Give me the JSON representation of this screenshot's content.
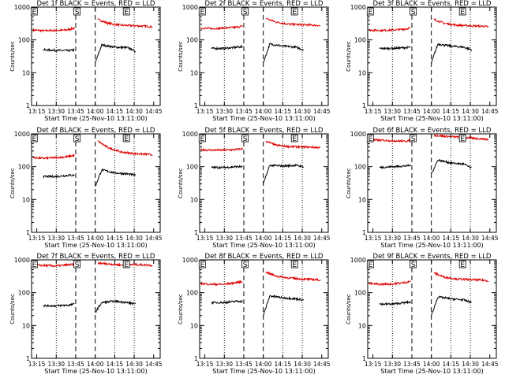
{
  "figure": {
    "background": "#ffffff"
  },
  "colors": {
    "events": "#000000",
    "lld": "#dd0000",
    "axes": "#000000",
    "markers": "#000000"
  },
  "chart_data": [
    {
      "panel": 1,
      "type": "line",
      "title": "Det 1f BLACK = Events, RED = LLD",
      "xlabel": "Start Time (25-Nov-10 13:11:00)",
      "ylabel": "Counts/sec",
      "ylog": true,
      "ylim": [
        1,
        1000
      ],
      "yticks": [
        "1",
        "10",
        "100",
        "1000"
      ],
      "xticks": [
        "13:15",
        "13:30",
        "13:45",
        "14:00",
        "14:15",
        "14:30",
        "14:45"
      ],
      "markers": [
        "E",
        "S",
        "E"
      ],
      "series": [
        {
          "color": "#dd0000",
          "segments": [
            {
              "x": [
                "13:12",
                "13:20",
                "13:30",
                "13:38",
                "13:44"
              ],
              "y": [
                200,
                190,
                195,
                200,
                230
              ]
            },
            {
              "x": [
                "14:02",
                "14:10",
                "14:20",
                "14:30",
                "14:40",
                "14:44"
              ],
              "y": [
                420,
                320,
                280,
                270,
                260,
                250
              ]
            }
          ]
        },
        {
          "color": "#000000",
          "segments": [
            {
              "x": [
                "13:20",
                "13:30",
                "13:40",
                "13:44"
              ],
              "y": [
                50,
                48,
                47,
                50
              ]
            },
            {
              "x": [
                "14:00",
                "14:05",
                "14:15",
                "14:25",
                "14:31"
              ],
              "y": [
                20,
                70,
                60,
                58,
                45
              ]
            }
          ]
        }
      ]
    },
    {
      "panel": 2,
      "type": "line",
      "title": "Det 2f BLACK = Events, RED = LLD",
      "xlabel": "Start Time (25-Nov-10 13:11:00)",
      "ylabel": "Counts/sec",
      "ylog": true,
      "ylim": [
        1,
        1000
      ],
      "yticks": [
        "1",
        "10",
        "100",
        "1000"
      ],
      "xticks": [
        "13:15",
        "13:30",
        "13:45",
        "14:00",
        "14:15",
        "14:30",
        "14:45"
      ],
      "markers": [
        "E",
        "S",
        "E"
      ],
      "series": [
        {
          "color": "#dd0000",
          "segments": [
            {
              "x": [
                "13:12",
                "13:20",
                "13:30",
                "13:38",
                "13:44"
              ],
              "y": [
                230,
                220,
                230,
                240,
                260
              ]
            },
            {
              "x": [
                "14:02",
                "14:10",
                "14:20",
                "14:30",
                "14:40",
                "14:44"
              ],
              "y": [
                450,
                350,
                300,
                290,
                280,
                270
              ]
            }
          ]
        },
        {
          "color": "#000000",
          "segments": [
            {
              "x": [
                "13:20",
                "13:30",
                "13:40",
                "13:44"
              ],
              "y": [
                55,
                55,
                60,
                62
              ]
            },
            {
              "x": [
                "14:00",
                "14:05",
                "14:15",
                "14:25",
                "14:31"
              ],
              "y": [
                20,
                75,
                65,
                60,
                50
              ]
            }
          ]
        }
      ]
    },
    {
      "panel": 3,
      "type": "line",
      "title": "Det 3f BLACK = Events, RED = LLD",
      "xlabel": "Start Time (25-Nov-10 13:11:00)",
      "ylabel": "Counts/sec",
      "ylog": true,
      "ylim": [
        1,
        1000
      ],
      "yticks": [
        "1",
        "10",
        "100",
        "1000"
      ],
      "xticks": [
        "13:15",
        "13:30",
        "13:45",
        "14:00",
        "14:15",
        "14:30",
        "14:45"
      ],
      "markers": [
        "E",
        "S",
        "E"
      ],
      "series": [
        {
          "color": "#dd0000",
          "segments": [
            {
              "x": [
                "13:12",
                "13:20",
                "13:30",
                "13:38",
                "13:44"
              ],
              "y": [
                200,
                195,
                200,
                210,
                230
              ]
            },
            {
              "x": [
                "14:02",
                "14:10",
                "14:20",
                "14:30",
                "14:40",
                "14:44"
              ],
              "y": [
                420,
                320,
                280,
                270,
                260,
                250
              ]
            }
          ]
        },
        {
          "color": "#000000",
          "segments": [
            {
              "x": [
                "13:20",
                "13:30",
                "13:40",
                "13:44"
              ],
              "y": [
                55,
                55,
                58,
                60
              ]
            },
            {
              "x": [
                "14:00",
                "14:05",
                "14:15",
                "14:25",
                "14:31"
              ],
              "y": [
                20,
                75,
                65,
                60,
                50
              ]
            }
          ]
        }
      ]
    },
    {
      "panel": 4,
      "type": "line",
      "title": "Det 4f BLACK = Events, RED = LLD",
      "xlabel": "Start Time (25-Nov-10 13:11:00)",
      "ylabel": "Counts/sec",
      "ylog": true,
      "ylim": [
        1,
        1000
      ],
      "yticks": [
        "1",
        "10",
        "100",
        "1000"
      ],
      "xticks": [
        "13:15",
        "13:30",
        "13:45",
        "14:00",
        "14:15",
        "14:30",
        "14:45"
      ],
      "markers": [
        "E",
        "S",
        "E"
      ],
      "series": [
        {
          "color": "#dd0000",
          "segments": [
            {
              "x": [
                "13:12",
                "13:20",
                "13:30",
                "13:38",
                "13:44"
              ],
              "y": [
                190,
                180,
                190,
                200,
                220
              ]
            },
            {
              "x": [
                "14:02",
                "14:10",
                "14:20",
                "14:30",
                "14:40",
                "14:44"
              ],
              "y": [
                600,
                380,
                280,
                250,
                240,
                230
              ]
            }
          ]
        },
        {
          "color": "#000000",
          "segments": [
            {
              "x": [
                "13:20",
                "13:30",
                "13:40",
                "13:44"
              ],
              "y": [
                50,
                50,
                55,
                55
              ]
            },
            {
              "x": [
                "14:00",
                "14:05",
                "14:15",
                "14:25",
                "14:31"
              ],
              "y": [
                25,
                80,
                65,
                60,
                55
              ]
            }
          ]
        }
      ]
    },
    {
      "panel": 5,
      "type": "line",
      "title": "Det 5f BLACK = Events, RED = LLD",
      "xlabel": "Start Time (25-Nov-10 13:11:00)",
      "ylabel": "Counts/sec",
      "ylog": true,
      "ylim": [
        1,
        1000
      ],
      "yticks": [
        "1",
        "10",
        "100",
        "1000"
      ],
      "xticks": [
        "13:15",
        "13:30",
        "13:45",
        "14:00",
        "14:15",
        "14:30",
        "14:45"
      ],
      "markers": [
        "E",
        "S",
        "E"
      ],
      "series": [
        {
          "color": "#dd0000",
          "segments": [
            {
              "x": [
                "13:12",
                "13:20",
                "13:30",
                "13:38",
                "13:44"
              ],
              "y": [
                330,
                320,
                320,
                330,
                350
              ]
            },
            {
              "x": [
                "14:02",
                "14:10",
                "14:20",
                "14:30",
                "14:40",
                "14:44"
              ],
              "y": [
                600,
                450,
                410,
                400,
                390,
                380
              ]
            }
          ]
        },
        {
          "color": "#000000",
          "segments": [
            {
              "x": [
                "13:20",
                "13:30",
                "13:40",
                "13:44"
              ],
              "y": [
                95,
                95,
                100,
                100
              ]
            },
            {
              "x": [
                "14:00",
                "14:05",
                "14:15",
                "14:25",
                "14:31"
              ],
              "y": [
                30,
                110,
                105,
                110,
                100
              ]
            }
          ]
        }
      ]
    },
    {
      "panel": 6,
      "type": "line",
      "title": "Det 6f BLACK = Events, RED = LLD",
      "xlabel": "Start Time (25-Nov-10 13:11:00)",
      "ylabel": "Counts/sec",
      "ylog": true,
      "ylim": [
        1,
        1000
      ],
      "yticks": [
        "1",
        "10",
        "100",
        "1000"
      ],
      "xticks": [
        "13:15",
        "13:30",
        "13:45",
        "14:00",
        "14:15",
        "14:30",
        "14:45"
      ],
      "markers": [
        "E",
        "S",
        "E"
      ],
      "series": [
        {
          "color": "#dd0000",
          "segments": [
            {
              "x": [
                "13:12",
                "13:20",
                "13:30",
                "13:38",
                "13:44"
              ],
              "y": [
                650,
                640,
                620,
                600,
                620
              ]
            },
            {
              "x": [
                "14:02",
                "14:10",
                "14:20",
                "14:30",
                "14:40",
                "14:44"
              ],
              "y": [
                900,
                850,
                800,
                750,
                700,
                680
              ]
            }
          ]
        },
        {
          "color": "#000000",
          "segments": [
            {
              "x": [
                "13:20",
                "13:30",
                "13:40",
                "13:44"
              ],
              "y": [
                95,
                100,
                105,
                110
              ]
            },
            {
              "x": [
                "14:00",
                "14:05",
                "14:15",
                "14:25",
                "14:31"
              ],
              "y": [
                60,
                160,
                130,
                120,
                90
              ]
            }
          ]
        }
      ]
    },
    {
      "panel": 7,
      "type": "line",
      "title": "Det 7f BLACK = Events, RED = LLD",
      "xlabel": "Start Time (25-Nov-10 13:11:00)",
      "ylabel": "Counts/sec",
      "ylog": true,
      "ylim": [
        1,
        1000
      ],
      "yticks": [
        "1",
        "10",
        "100",
        "1000"
      ],
      "xticks": [
        "13:15",
        "13:30",
        "13:45",
        "14:00",
        "14:15",
        "14:30",
        "14:45"
      ],
      "markers": [
        "E",
        "S",
        "E"
      ],
      "series": [
        {
          "color": "#dd0000",
          "segments": [
            {
              "x": [
                "13:12",
                "13:20",
                "13:30",
                "13:38",
                "13:44"
              ],
              "y": [
                700,
                680,
                650,
                700,
                720
              ]
            },
            {
              "x": [
                "14:02",
                "14:10",
                "14:20",
                "14:30",
                "14:40",
                "14:44"
              ],
              "y": [
                800,
                750,
                700,
                720,
                700,
                680
              ]
            }
          ]
        },
        {
          "color": "#000000",
          "segments": [
            {
              "x": [
                "13:20",
                "13:30",
                "13:40",
                "13:44"
              ],
              "y": [
                40,
                40,
                42,
                45
              ]
            },
            {
              "x": [
                "14:00",
                "14:05",
                "14:15",
                "14:25",
                "14:31"
              ],
              "y": [
                25,
                50,
                55,
                50,
                45
              ]
            }
          ]
        }
      ]
    },
    {
      "panel": 8,
      "type": "line",
      "title": "Det 8f BLACK = Events, RED = LLD",
      "xlabel": "Start Time (25-Nov-10 13:11:00)",
      "ylabel": "Counts/sec",
      "ylog": true,
      "ylim": [
        1,
        1000
      ],
      "yticks": [
        "1",
        "10",
        "100",
        "1000"
      ],
      "xticks": [
        "13:15",
        "13:30",
        "13:45",
        "14:00",
        "14:15",
        "14:30",
        "14:45"
      ],
      "markers": [
        "E",
        "S",
        "E"
      ],
      "series": [
        {
          "color": "#dd0000",
          "segments": [
            {
              "x": [
                "13:12",
                "13:20",
                "13:30",
                "13:38",
                "13:44"
              ],
              "y": [
                190,
                180,
                180,
                200,
                220
              ]
            },
            {
              "x": [
                "14:02",
                "14:10",
                "14:20",
                "14:30",
                "14:40",
                "14:44"
              ],
              "y": [
                420,
                320,
                280,
                260,
                250,
                240
              ]
            }
          ]
        },
        {
          "color": "#000000",
          "segments": [
            {
              "x": [
                "13:20",
                "13:30",
                "13:40",
                "13:44"
              ],
              "y": [
                50,
                50,
                55,
                55
              ]
            },
            {
              "x": [
                "14:00",
                "14:05",
                "14:15",
                "14:25",
                "14:31"
              ],
              "y": [
                20,
                80,
                70,
                65,
                60
              ]
            }
          ]
        }
      ]
    },
    {
      "panel": 9,
      "type": "line",
      "title": "Det 9f BLACK = Events, RED = LLD",
      "xlabel": "Start Time (25-Nov-10 13:11:00)",
      "ylabel": "Counts/sec",
      "ylog": true,
      "ylim": [
        1,
        1000
      ],
      "yticks": [
        "1",
        "10",
        "100",
        "1000"
      ],
      "xticks": [
        "13:15",
        "13:30",
        "13:45",
        "14:00",
        "14:15",
        "14:30",
        "14:45"
      ],
      "markers": [
        "E",
        "S",
        "E"
      ],
      "series": [
        {
          "color": "#dd0000",
          "segments": [
            {
              "x": [
                "13:12",
                "13:20",
                "13:30",
                "13:38",
                "13:44"
              ],
              "y": [
                190,
                180,
                185,
                200,
                220
              ]
            },
            {
              "x": [
                "14:02",
                "14:10",
                "14:20",
                "14:30",
                "14:40",
                "14:44"
              ],
              "y": [
                400,
                300,
                260,
                250,
                240,
                230
              ]
            }
          ]
        },
        {
          "color": "#000000",
          "segments": [
            {
              "x": [
                "13:20",
                "13:30",
                "13:40",
                "13:44"
              ],
              "y": [
                45,
                45,
                50,
                52
              ]
            },
            {
              "x": [
                "14:00",
                "14:05",
                "14:15",
                "14:25",
                "14:31"
              ],
              "y": [
                20,
                75,
                65,
                60,
                50
              ]
            }
          ]
        }
      ]
    }
  ]
}
